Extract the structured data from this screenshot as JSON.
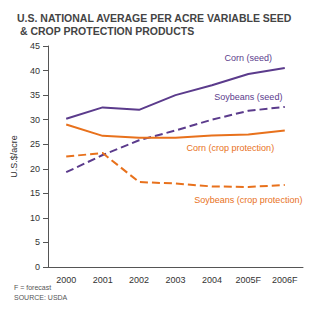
{
  "chart_data": {
    "type": "line",
    "title": "U.S. NATIONAL AVERAGE PER ACRE VARIABLE SEED & CROP PROTECTION PRODUCTS",
    "y_label": "U.S.$/acre",
    "annotations": [
      "F = forecast",
      "SOURCE: USDA"
    ],
    "categories": [
      "2000",
      "2001",
      "2002",
      "2003",
      "2004",
      "2005F",
      "2006F"
    ],
    "series": [
      {
        "name": "Corn (seed)",
        "color": "#5b3b8c",
        "line_style": "solid",
        "marker": "none",
        "values": [
          30.2,
          32.5,
          32,
          35,
          37,
          39.3,
          40.5
        ]
      },
      {
        "name": "Soybeans (seed)",
        "color": "#5b3b8c",
        "line_style": "dashed",
        "marker": "none",
        "values": [
          19.3,
          22.8,
          25.8,
          27.8,
          30,
          31.8,
          32.6
        ]
      },
      {
        "name": "Corn (crop protection)",
        "color": "#e8711c",
        "line_style": "solid",
        "marker": "none",
        "values": [
          29,
          26.7,
          26.3,
          26.3,
          26.8,
          27,
          27.8
        ]
      },
      {
        "name": "Soybeans (crop protection)",
        "color": "#e8711c",
        "line_style": "dashed",
        "marker": "none",
        "values": [
          22.5,
          23.2,
          17.3,
          17,
          16.4,
          16.3,
          16.7
        ]
      }
    ],
    "ylim": [
      0,
      45
    ],
    "yticks": [
      0,
      5,
      10,
      15,
      20,
      25,
      30,
      35,
      40,
      45
    ],
    "grid": false,
    "legend": "none"
  }
}
